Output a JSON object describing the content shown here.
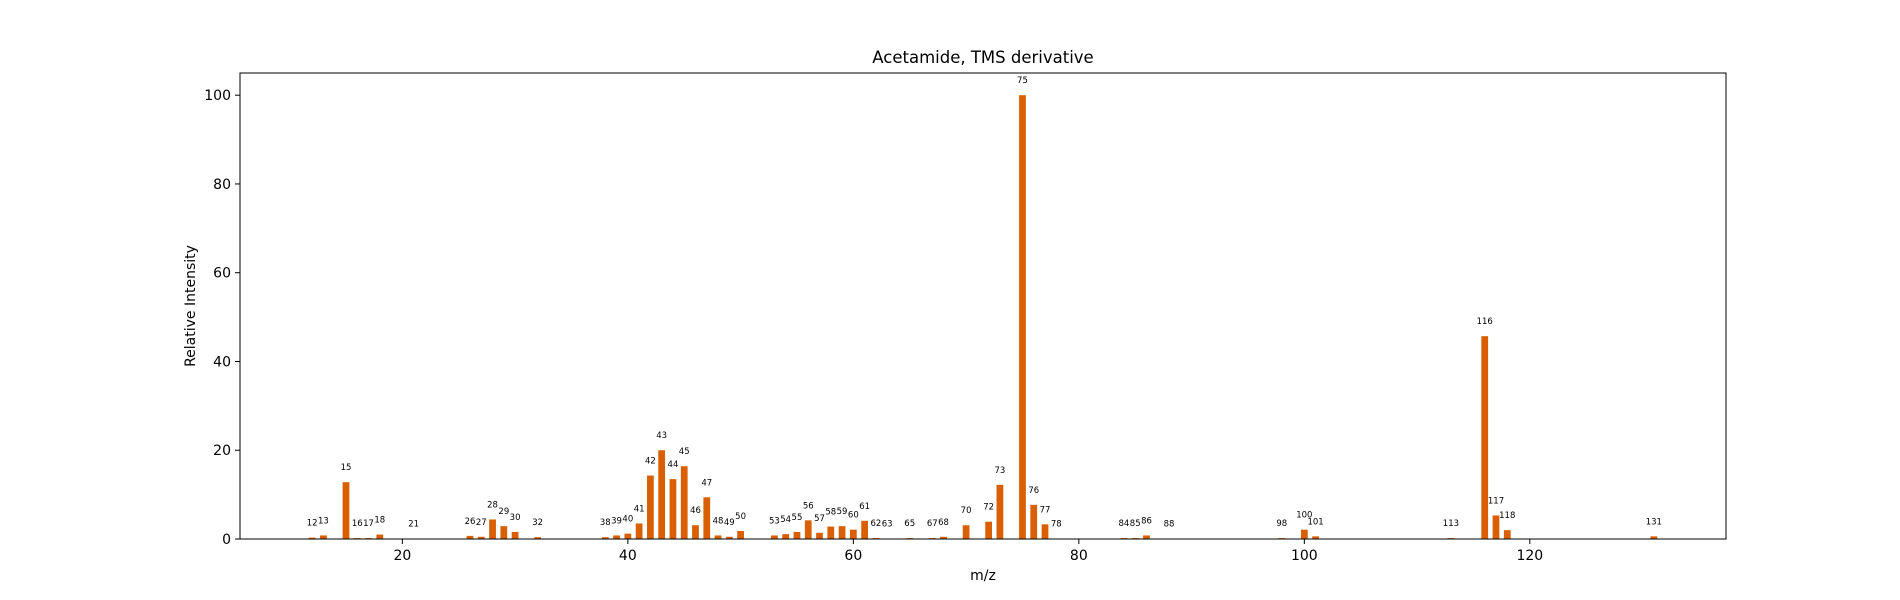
{
  "chart_data": {
    "type": "bar",
    "title": "Acetamide, TMS derivative",
    "xlabel": "m/z",
    "ylabel": "Relative Intensity",
    "xlim": [
      5.6,
      137.4
    ],
    "ylim": [
      0,
      105
    ],
    "xticks": [
      20,
      40,
      60,
      80,
      100,
      120
    ],
    "yticks": [
      0,
      20,
      40,
      60,
      80,
      100
    ],
    "bar_color": "#d95f02",
    "grid": false,
    "x": [
      12,
      13,
      15,
      16,
      17,
      18,
      21,
      26,
      27,
      28,
      29,
      30,
      32,
      38,
      39,
      40,
      41,
      42,
      43,
      44,
      45,
      46,
      47,
      48,
      49,
      50,
      53,
      54,
      55,
      56,
      57,
      58,
      59,
      60,
      61,
      62,
      63,
      65,
      67,
      68,
      70,
      72,
      73,
      75,
      76,
      77,
      78,
      84,
      85,
      86,
      88,
      98,
      100,
      101,
      113,
      116,
      117,
      118,
      131
    ],
    "values": [
      0.3,
      0.8,
      12.8,
      0.2,
      0.2,
      1.0,
      0.1,
      0.7,
      0.5,
      4.4,
      2.9,
      1.6,
      0.4,
      0.4,
      0.8,
      1.2,
      3.5,
      14.3,
      20.0,
      13.5,
      16.4,
      3.1,
      9.4,
      0.8,
      0.5,
      1.8,
      0.8,
      1.1,
      1.6,
      4.2,
      1.4,
      2.8,
      2.9,
      2.1,
      4.1,
      0.2,
      0.1,
      0.2,
      0.2,
      0.5,
      3.1,
      3.9,
      12.2,
      100.0,
      7.7,
      3.3,
      0.1,
      0.2,
      0.2,
      0.8,
      0.1,
      0.2,
      2.1,
      0.6,
      0.2,
      45.7,
      5.3,
      2.0,
      0.6
    ]
  }
}
